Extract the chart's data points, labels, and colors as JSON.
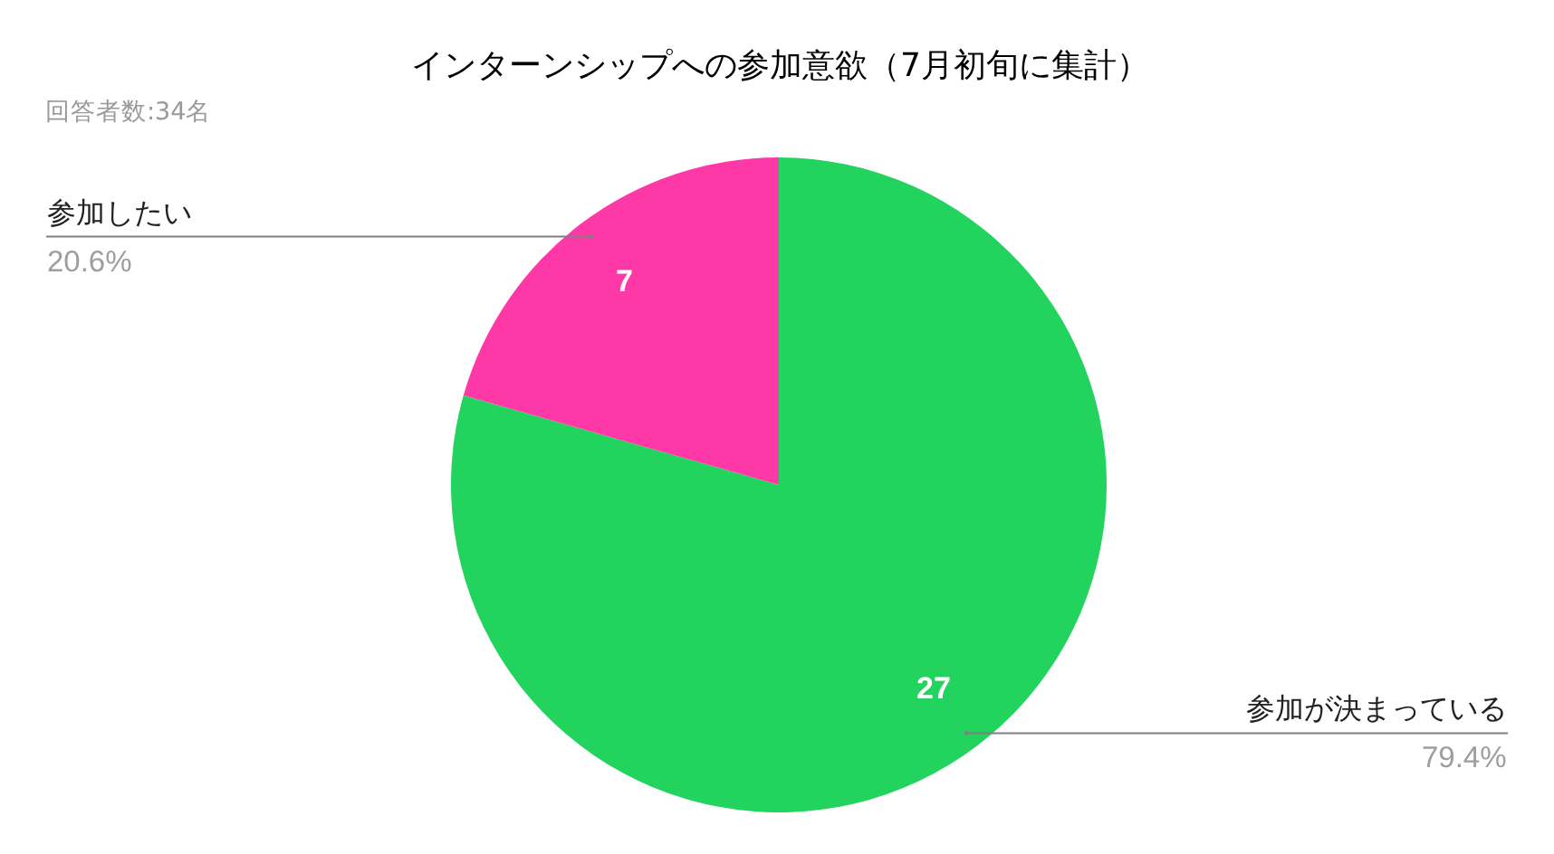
{
  "chart_data": {
    "type": "pie",
    "title": "インターンシップへの参加意欲（7月初旬に集計）",
    "subtitle": "回答者数:34名",
    "categories": [
      "参加が決まっている",
      "参加したい"
    ],
    "values": [
      27,
      7
    ],
    "colors": [
      "#22d35e",
      "#ff38a8"
    ],
    "data_labels": true,
    "annotations": [
      "79.4%",
      "20.6%"
    ],
    "legend": false
  }
}
